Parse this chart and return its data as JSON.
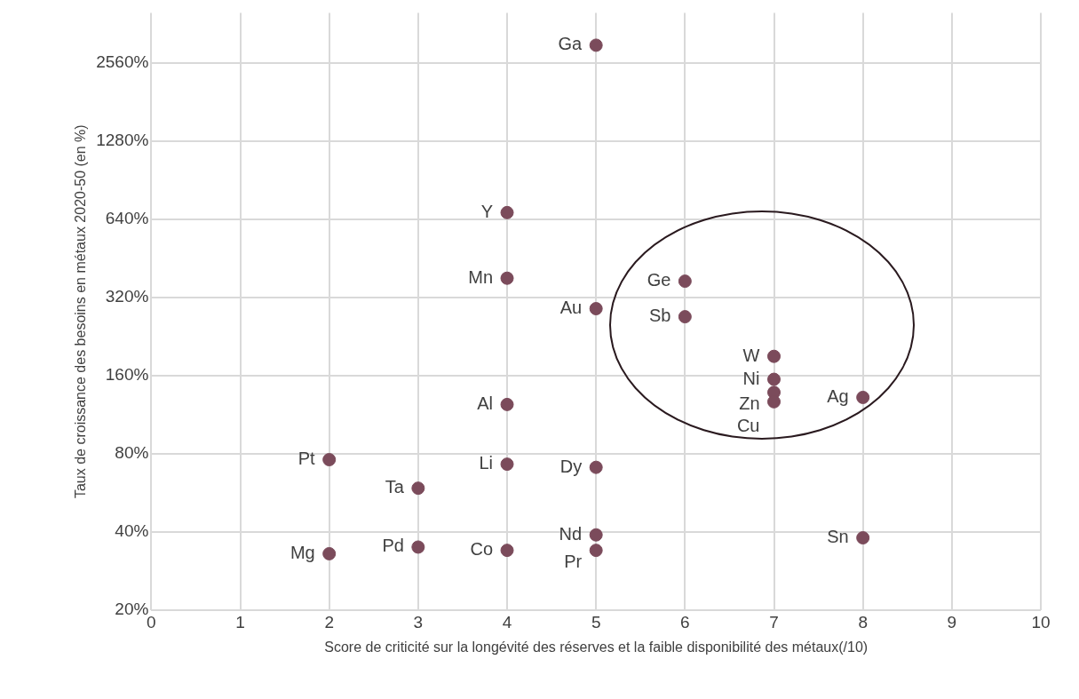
{
  "chart_data": {
    "type": "scatter",
    "xlabel": "Score de criticité sur la longévité des réserves et la faible disponibilité des métaux(/10)",
    "ylabel": "Taux de croissance des besoins en métaux 2020-50 (en %)",
    "x": [
      5,
      4,
      4,
      6,
      5,
      6,
      7,
      7,
      7,
      7,
      8,
      4,
      2,
      4,
      5,
      3,
      5,
      8,
      3,
      4,
      2,
      5
    ],
    "values": [
      3000,
      680,
      380,
      370,
      290,
      270,
      190,
      155,
      138,
      127,
      132,
      124,
      76,
      73,
      71,
      59,
      39,
      38,
      35,
      34,
      33,
      34
    ],
    "color": "#7b4b5b",
    "marker": "circle",
    "log": "y",
    "grid": true,
    "xlim": [
      0,
      10
    ],
    "xticks": [
      0,
      1,
      2,
      3,
      4,
      5,
      6,
      7,
      8,
      9,
      10
    ],
    "ylim": [
      20,
      4000
    ],
    "yticks": [
      {
        "value": 20,
        "label": "20%"
      },
      {
        "value": 40,
        "label": "40%"
      },
      {
        "value": 80,
        "label": "80%"
      },
      {
        "value": 160,
        "label": "160%"
      },
      {
        "value": 320,
        "label": "320%"
      },
      {
        "value": 640,
        "label": "640%"
      },
      {
        "value": 1280,
        "label": "1280%"
      },
      {
        "value": 2560,
        "label": "2560%"
      }
    ],
    "annotations": [
      {
        "text": "Ga",
        "x": 5,
        "y": 3000
      },
      {
        "text": "Y",
        "x": 4,
        "y": 680
      },
      {
        "text": "Mn",
        "x": 4,
        "y": 380
      },
      {
        "text": "Ge",
        "x": 6,
        "y": 370
      },
      {
        "text": "Au",
        "x": 5,
        "y": 290
      },
      {
        "text": "Sb",
        "x": 6,
        "y": 270
      },
      {
        "text": "W",
        "x": 7,
        "y": 190
      },
      {
        "text": "Ni",
        "x": 7,
        "y": 155
      },
      {
        "text": "Zn",
        "x": 7,
        "y": 138
      },
      {
        "text": "Cu",
        "x": 7,
        "y": 127
      },
      {
        "text": "Ag",
        "x": 8,
        "y": 132
      },
      {
        "text": "Al",
        "x": 4,
        "y": 124
      },
      {
        "text": "Pt",
        "x": 2,
        "y": 76
      },
      {
        "text": "Li",
        "x": 4,
        "y": 73
      },
      {
        "text": "Dy",
        "x": 5,
        "y": 71
      },
      {
        "text": "Ta",
        "x": 3,
        "y": 59
      },
      {
        "text": "Nd",
        "x": 5,
        "y": 39
      },
      {
        "text": "Sn",
        "x": 8,
        "y": 38
      },
      {
        "text": "Pd",
        "x": 3,
        "y": 35
      },
      {
        "text": "Co",
        "x": 4,
        "y": 34
      },
      {
        "text": "Mg",
        "x": 2,
        "y": 33
      },
      {
        "text": "Pr",
        "x": 5,
        "y": 34
      }
    ]
  }
}
